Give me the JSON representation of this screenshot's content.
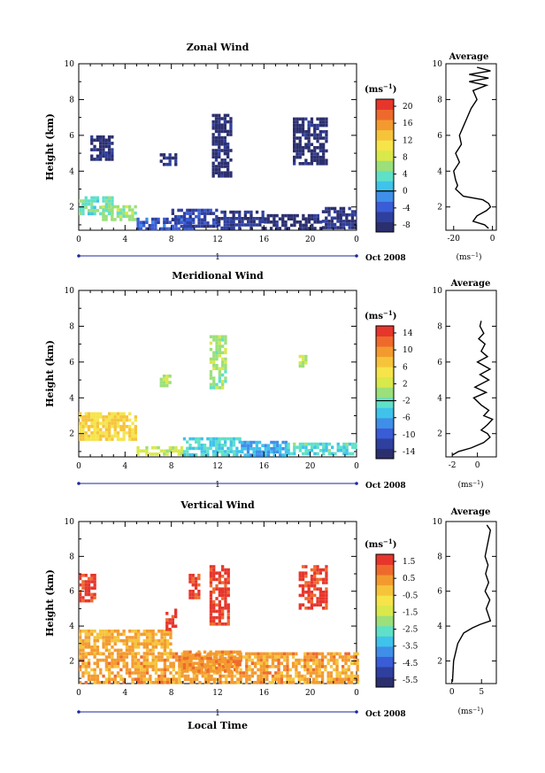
{
  "xlabel": "Local Time",
  "palette": [
    "#2b2f6e",
    "#2f3f9e",
    "#3a5cd6",
    "#3f8fe8",
    "#3fc3ea",
    "#5fe0c8",
    "#9be07a",
    "#d9e84a",
    "#f6e44a",
    "#f6c43a",
    "#f39a2f",
    "#ee6a2c",
    "#e6362c"
  ],
  "panels": [
    {
      "title": "Zonal Wind",
      "ylabel": "Height (km)",
      "day": "1",
      "date": "Oct 2008",
      "cbar_unit_base": "(ms",
      "cbar_unit_exp": "−1",
      "cbar_unit_close": ")",
      "avg_title": "Average",
      "xticks": [
        "0",
        "4",
        "8",
        "12",
        "16",
        "20",
        "0"
      ],
      "yticks": [
        "2",
        "4",
        "6",
        "8",
        "10"
      ],
      "cbar_ticks": [
        "20",
        "16",
        "12",
        "8",
        "4",
        "0",
        "-4",
        "-8"
      ],
      "avg_xticks": [
        "-20",
        "0"
      ]
    },
    {
      "title": "Meridional Wind",
      "ylabel": "Height (km)",
      "day": "1",
      "date": "Oct 2008",
      "cbar_unit_base": "(ms",
      "cbar_unit_exp": "−1",
      "cbar_unit_close": ")",
      "avg_title": "Average",
      "xticks": [
        "0",
        "4",
        "8",
        "12",
        "16",
        "20",
        "0"
      ],
      "yticks": [
        "2",
        "4",
        "6",
        "8",
        "10"
      ],
      "cbar_ticks": [
        "14",
        "10",
        "6",
        "2",
        "-2",
        "-6",
        "-10",
        "-14"
      ],
      "avg_xticks": [
        "-2",
        "0"
      ]
    },
    {
      "title": "Vertical Wind",
      "ylabel": "Height (km)",
      "day": "1",
      "date": "Oct 2008",
      "cbar_unit_base": "(ms",
      "cbar_unit_exp": "−1",
      "cbar_unit_close": ")",
      "avg_title": "Average",
      "xticks": [
        "0",
        "4",
        "8",
        "12",
        "16",
        "20",
        "0"
      ],
      "yticks": [
        "2",
        "4",
        "6",
        "8",
        "10"
      ],
      "cbar_ticks": [
        "1.5",
        "0.5",
        "-0.5",
        "-1.5",
        "-2.5",
        "-3.5",
        "-4.5",
        "-5.5"
      ],
      "avg_xticks": [
        "0",
        "5"
      ]
    }
  ],
  "chart_data": [
    {
      "type": "heatmap",
      "title": "Zonal Wind",
      "xlabel": "",
      "ylabel": "Height (km)",
      "x_range": [
        0,
        24
      ],
      "y_range": [
        0.7,
        10
      ],
      "color_range": [
        -10,
        22
      ],
      "colorbar_label": "(ms−1)",
      "regions": [
        {
          "x": [
            0,
            3
          ],
          "y": [
            1.6,
            2.6
          ],
          "value": 4
        },
        {
          "x": [
            2,
            5
          ],
          "y": [
            1.3,
            2.1
          ],
          "value": 6
        },
        {
          "x": [
            5,
            10
          ],
          "y": [
            0.8,
            1.4
          ],
          "value": -4
        },
        {
          "x": [
            8,
            12
          ],
          "y": [
            0.9,
            1.9
          ],
          "value": -6
        },
        {
          "x": [
            12,
            16
          ],
          "y": [
            0.8,
            1.8
          ],
          "value": -7
        },
        {
          "x": [
            16,
            21
          ],
          "y": [
            0.8,
            1.6
          ],
          "value": -9
        },
        {
          "x": [
            21,
            24
          ],
          "y": [
            0.8,
            2.0
          ],
          "value": -8
        },
        {
          "x": [
            11.5,
            13.2
          ],
          "y": [
            3.8,
            7.2
          ],
          "value": -9
        },
        {
          "x": [
            18.5,
            21.5
          ],
          "y": [
            4.5,
            7.0
          ],
          "value": -9
        },
        {
          "x": [
            7,
            8.5
          ],
          "y": [
            4.3,
            5.0
          ],
          "value": -8
        },
        {
          "x": [
            1,
            3
          ],
          "y": [
            4.6,
            6.0
          ],
          "value": -8
        }
      ],
      "average_profile": {
        "xlim": [
          -24,
          2
        ],
        "height": [
          0.8,
          1.0,
          1.2,
          1.5,
          1.8,
          2.0,
          2.2,
          2.4,
          2.6,
          2.8,
          3.0,
          3.2,
          3.5,
          4.0,
          4.5,
          5.0,
          5.5,
          6.0,
          6.5,
          7.0,
          7.5,
          8.0,
          8.5,
          8.8,
          9.0,
          9.2,
          9.4,
          9.6,
          9.8
        ],
        "wind": [
          -2,
          -4,
          -10,
          -8,
          -3,
          -1,
          -2,
          -5,
          -15,
          -17,
          -19,
          -18,
          -19,
          -20,
          -17,
          -19,
          -16,
          -17,
          -15,
          -13,
          -11,
          -8,
          -10,
          -3,
          -12,
          -2,
          -12,
          -1,
          -8
        ]
      }
    },
    {
      "type": "heatmap",
      "title": "Meridional Wind",
      "xlabel": "",
      "ylabel": "Height (km)",
      "x_range": [
        0,
        24
      ],
      "y_range": [
        0.7,
        10
      ],
      "color_range": [
        -16,
        16
      ],
      "colorbar_label": "(ms−1)",
      "regions": [
        {
          "x": [
            0,
            5
          ],
          "y": [
            1.6,
            3.2
          ],
          "value": 6
        },
        {
          "x": [
            5,
            9
          ],
          "y": [
            0.8,
            1.3
          ],
          "value": 2
        },
        {
          "x": [
            9,
            14
          ],
          "y": [
            0.9,
            1.8
          ],
          "value": -4
        },
        {
          "x": [
            14,
            18
          ],
          "y": [
            0.8,
            1.6
          ],
          "value": -6
        },
        {
          "x": [
            18,
            24
          ],
          "y": [
            0.8,
            1.5
          ],
          "value": -3
        },
        {
          "x": [
            11.3,
            12.8
          ],
          "y": [
            4.5,
            7.5
          ],
          "value": 0
        },
        {
          "x": [
            7,
            8
          ],
          "y": [
            4.6,
            5.3
          ],
          "value": 1
        },
        {
          "x": [
            19,
            19.6
          ],
          "y": [
            5.8,
            6.4
          ],
          "value": 1
        }
      ],
      "average_profile": {
        "xlim": [
          -2.5,
          1.5
        ],
        "height": [
          0.8,
          1.0,
          1.2,
          1.5,
          1.8,
          2.0,
          2.2,
          2.5,
          2.8,
          3.0,
          3.3,
          3.6,
          4.0,
          4.3,
          4.6,
          5.0,
          5.3,
          5.6,
          6.0,
          6.3,
          6.6,
          7.0,
          7.3,
          7.6,
          8.0,
          8.3
        ],
        "wind": [
          -2.0,
          -1.5,
          -0.5,
          0.5,
          1.0,
          0.8,
          0.3,
          0.8,
          1.2,
          0.5,
          0.9,
          0.3,
          -0.3,
          0.7,
          -0.2,
          0.9,
          0.2,
          1.0,
          0.0,
          0.8,
          0.3,
          0.6,
          0.1,
          0.5,
          0.2,
          0.3
        ]
      }
    },
    {
      "type": "heatmap",
      "title": "Vertical Wind",
      "xlabel": "Local Time",
      "ylabel": "Height (km)",
      "x_range": [
        0,
        24
      ],
      "y_range": [
        0.7,
        10
      ],
      "color_range": [
        -6,
        2
      ],
      "colorbar_label": "(ms−1)",
      "regions": [
        {
          "x": [
            0,
            24
          ],
          "y": [
            0.8,
            2.5
          ],
          "value": 0.4
        },
        {
          "x": [
            0,
            8
          ],
          "y": [
            2.5,
            3.8
          ],
          "value": 0.2
        },
        {
          "x": [
            9,
            14
          ],
          "y": [
            1.5,
            2.6
          ],
          "value": 0.6
        },
        {
          "x": [
            0,
            1.5
          ],
          "y": [
            5.5,
            7.0
          ],
          "value": 1.6
        },
        {
          "x": [
            7.5,
            8.5
          ],
          "y": [
            3.8,
            5.0
          ],
          "value": 1.6
        },
        {
          "x": [
            9.5,
            10.5
          ],
          "y": [
            5.6,
            7.0
          ],
          "value": 1.6
        },
        {
          "x": [
            11.3,
            13
          ],
          "y": [
            4.2,
            7.5
          ],
          "value": 1.6
        },
        {
          "x": [
            19,
            21.5
          ],
          "y": [
            5.0,
            7.5
          ],
          "value": 1.6
        }
      ],
      "average_profile": {
        "xlim": [
          -1,
          7.5
        ],
        "height": [
          0.8,
          2.0,
          3.0,
          3.6,
          3.9,
          4.1,
          4.3,
          4.6,
          5.0,
          5.5,
          6.0,
          6.5,
          7.0,
          7.5,
          8.0,
          8.5,
          9.0,
          9.5,
          9.8
        ],
        "wind": [
          0.1,
          0.3,
          1.0,
          2.0,
          3.5,
          4.8,
          6.5,
          6.2,
          5.8,
          6.4,
          5.6,
          6.2,
          5.7,
          6.1,
          5.6,
          5.9,
          6.2,
          6.5,
          5.9
        ]
      }
    }
  ]
}
